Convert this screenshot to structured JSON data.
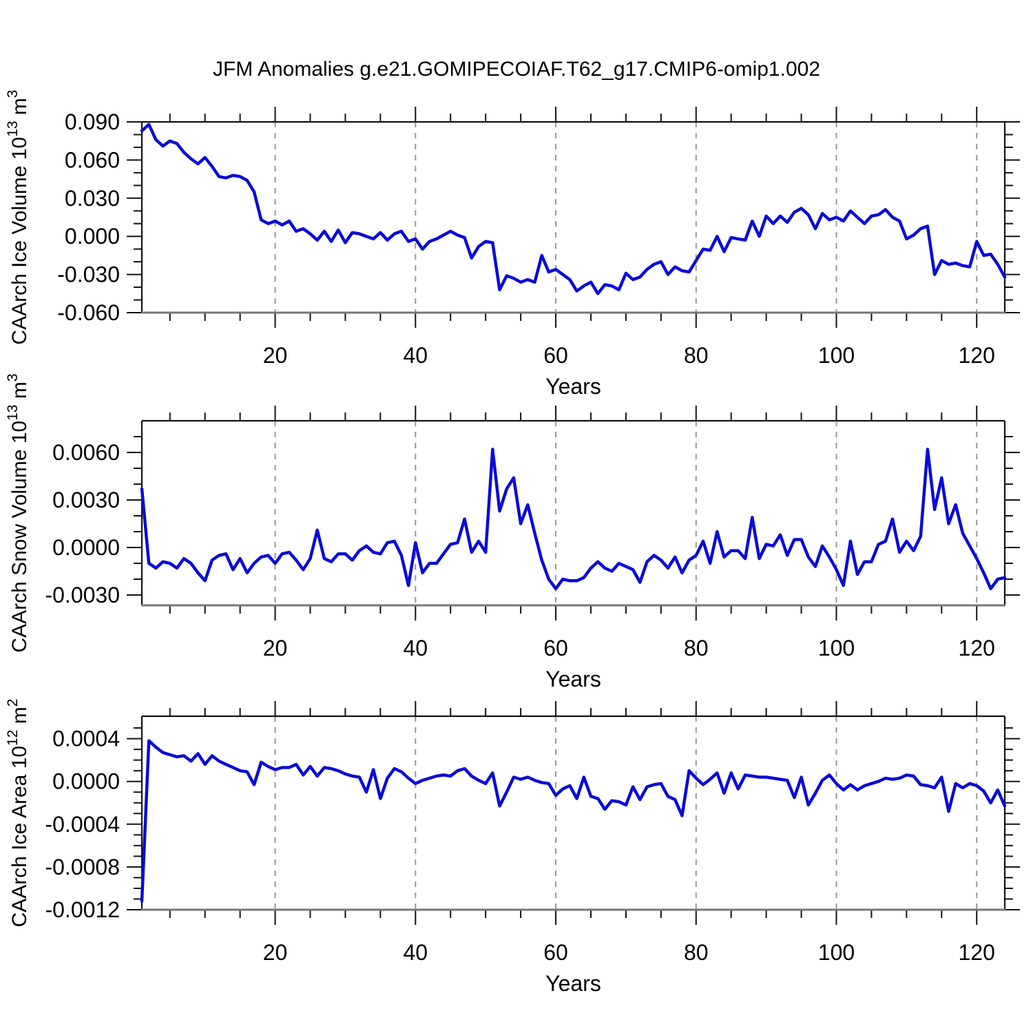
{
  "title": "JFM Anomalies g.e21.GOMIPECOIAF.T62_g17.CMIP6-omip1.002",
  "colors": {
    "line": "#0b0bd6",
    "frame": "#111111",
    "bottom_frame": "#777777",
    "grid": "#989898",
    "text": "#000000"
  },
  "chart_data": [
    {
      "type": "line",
      "ylabel": "CAArch Ice Volume 10^13 m^3",
      "xlabel": "Years",
      "x": {
        "start": 1,
        "end": 124,
        "step": 1
      },
      "xticks": [
        20,
        40,
        60,
        80,
        100,
        120
      ],
      "x_minor_step": 5,
      "ylim": [
        -0.06,
        0.09
      ],
      "yticks": [
        {
          "v": 0.09,
          "label": "0.090"
        },
        {
          "v": 0.06,
          "label": "0.060"
        },
        {
          "v": 0.03,
          "label": "0.030"
        },
        {
          "v": 0.0,
          "label": "0.000"
        },
        {
          "v": -0.03,
          "label": "-0.030"
        },
        {
          "v": -0.06,
          "label": "-0.060"
        }
      ],
      "y_minor_step": 0.01,
      "grid": true,
      "legend": "none",
      "values": [
        0.083,
        0.088,
        0.076,
        0.071,
        0.075,
        0.073,
        0.066,
        0.061,
        0.057,
        0.062,
        0.055,
        0.047,
        0.046,
        0.048,
        0.047,
        0.044,
        0.035,
        0.013,
        0.01,
        0.012,
        0.009,
        0.012,
        0.004,
        0.006,
        0.002,
        -0.003,
        0.004,
        -0.004,
        0.005,
        -0.005,
        0.003,
        0.002,
        0.0,
        -0.002,
        0.003,
        -0.003,
        0.002,
        0.004,
        -0.004,
        -0.002,
        -0.01,
        -0.004,
        -0.002,
        0.001,
        0.004,
        0.001,
        -0.001,
        -0.017,
        -0.008,
        -0.004,
        -0.005,
        -0.042,
        -0.031,
        -0.033,
        -0.036,
        -0.034,
        -0.036,
        -0.015,
        -0.028,
        -0.026,
        -0.03,
        -0.034,
        -0.043,
        -0.039,
        -0.036,
        -0.045,
        -0.038,
        -0.039,
        -0.042,
        -0.029,
        -0.034,
        -0.032,
        -0.026,
        -0.022,
        -0.02,
        -0.03,
        -0.024,
        -0.027,
        -0.028,
        -0.019,
        -0.01,
        -0.011,
        0.0,
        -0.012,
        -0.001,
        -0.002,
        -0.003,
        0.012,
        0.0,
        0.016,
        0.01,
        0.016,
        0.011,
        0.019,
        0.022,
        0.017,
        0.006,
        0.018,
        0.013,
        0.015,
        0.012,
        0.02,
        0.015,
        0.01,
        0.016,
        0.017,
        0.021,
        0.015,
        0.012,
        -0.002,
        0.001,
        0.006,
        0.008,
        -0.03,
        -0.019,
        -0.022,
        -0.021,
        -0.023,
        -0.024,
        -0.004,
        -0.015,
        -0.014,
        -0.022,
        -0.032
      ]
    },
    {
      "type": "line",
      "ylabel": "CAArch Snow Volume 10^13 m^3",
      "xlabel": "Years",
      "x": {
        "start": 1,
        "end": 124,
        "step": 1
      },
      "xticks": [
        20,
        40,
        60,
        80,
        100,
        120
      ],
      "x_minor_step": 5,
      "ylim": [
        -0.003652,
        0.008
      ],
      "yticks": [
        {
          "v": 0.006,
          "label": "0.0060"
        },
        {
          "v": 0.003,
          "label": "0.0030"
        },
        {
          "v": 0.0,
          "label": "0.0000"
        },
        {
          "v": -0.003,
          "label": "-0.0030"
        }
      ],
      "y_minor_step": 0.001,
      "grid": true,
      "legend": "none",
      "values": [
        0.0037,
        -0.001,
        -0.0013,
        -0.0009,
        -0.001,
        -0.0013,
        -0.0007,
        -0.001,
        -0.0016,
        -0.0021,
        -0.0008,
        -0.0005,
        -0.0004,
        -0.0014,
        -0.0007,
        -0.0016,
        -0.001,
        -0.0006,
        -0.0005,
        -0.001,
        -0.0004,
        -0.0003,
        -0.0008,
        -0.0014,
        -0.0007,
        0.0011,
        -0.0007,
        -0.0009,
        -0.0004,
        -0.0004,
        -0.0008,
        -0.0002,
        0.0001,
        -0.0003,
        -0.0004,
        0.0003,
        0.0004,
        -0.0005,
        -0.0024,
        0.0003,
        -0.0016,
        -0.001,
        -0.001,
        -0.0004,
        0.0002,
        0.0003,
        0.0018,
        -0.0003,
        0.0004,
        -0.0003,
        0.0062,
        0.0023,
        0.0037,
        0.0044,
        0.0015,
        0.0027,
        0.0009,
        -0.0008,
        -0.002,
        -0.0026,
        -0.002,
        -0.0021,
        -0.0021,
        -0.0019,
        -0.0013,
        -0.0009,
        -0.0013,
        -0.0015,
        -0.001,
        -0.0012,
        -0.0014,
        -0.0022,
        -0.0009,
        -0.0005,
        -0.0008,
        -0.0013,
        -0.0006,
        -0.0016,
        -0.0008,
        -0.0005,
        0.0004,
        -0.001,
        0.001,
        -0.0006,
        -0.0002,
        -0.0002,
        -0.0007,
        0.0019,
        -0.0007,
        0.0002,
        0.0001,
        0.0008,
        -0.0005,
        0.0005,
        0.0005,
        -0.0006,
        -0.0012,
        0.0001,
        -0.0006,
        -0.0014,
        -0.0024,
        0.0004,
        -0.0017,
        -0.0009,
        -0.0009,
        0.0002,
        0.0004,
        0.0018,
        -0.0003,
        0.0004,
        -0.0002,
        0.0007,
        0.0062,
        0.0024,
        0.0044,
        0.0015,
        0.0027,
        0.0009,
        0.0001,
        -0.0007,
        -0.0016,
        -0.0026,
        -0.002,
        -0.0019
      ]
    },
    {
      "type": "line",
      "ylabel": "CAArch Ice Area 10^12 m^2",
      "xlabel": "Years",
      "x": {
        "start": 1,
        "end": 124,
        "step": 1
      },
      "xticks": [
        20,
        40,
        60,
        80,
        100,
        120
      ],
      "x_minor_step": 5,
      "ylim": [
        -0.0012,
        0.00061
      ],
      "yticks": [
        {
          "v": 0.0004,
          "label": "0.0004"
        },
        {
          "v": 0.0,
          "label": "0.0000"
        },
        {
          "v": -0.0004,
          "label": "-0.0004"
        },
        {
          "v": -0.0008,
          "label": "-0.0008"
        },
        {
          "v": -0.0012,
          "label": "-0.0012"
        }
      ],
      "y_minor_step": 0.0001,
      "grid": true,
      "legend": "none",
      "values": [
        -0.00112,
        0.00038,
        0.00032,
        0.00027,
        0.00025,
        0.00023,
        0.00024,
        0.00019,
        0.00026,
        0.00016,
        0.00024,
        0.00019,
        0.00016,
        0.00013,
        0.0001,
        9e-05,
        -3e-05,
        0.00018,
        0.00014,
        0.00011,
        0.00013,
        0.00013,
        0.00016,
        6e-05,
        0.00014,
        5e-05,
        0.00013,
        0.00012,
        0.0001,
        7e-05,
        5e-05,
        4e-05,
        -0.0001,
        0.00011,
        -0.00016,
        3e-05,
        0.00012,
        9e-05,
        3e-05,
        -2e-05,
        1e-05,
        3e-05,
        5e-05,
        6e-05,
        5e-05,
        0.0001,
        0.00012,
        5e-05,
        1e-05,
        -2e-05,
        8e-05,
        -0.00023,
        -0.0001,
        4e-05,
        2e-05,
        4e-05,
        1e-05,
        -1e-05,
        -2e-05,
        -0.00013,
        -7e-05,
        -4e-05,
        -0.00016,
        4e-05,
        -0.00014,
        -0.00016,
        -0.00026,
        -0.00018,
        -0.00019,
        -0.00022,
        -5e-05,
        -0.00017,
        -5e-05,
        -3e-05,
        -2e-05,
        -0.00014,
        -0.00017,
        -0.00032,
        0.0001,
        3e-05,
        -3e-05,
        2e-05,
        8e-05,
        -0.00011,
        8e-05,
        -7e-05,
        6e-05,
        5e-05,
        4e-05,
        4e-05,
        3e-05,
        2e-05,
        1e-05,
        -0.00015,
        4e-05,
        -0.00022,
        -0.00011,
        1e-05,
        6e-05,
        -2e-05,
        -8e-05,
        -3e-05,
        -8e-05,
        -4e-05,
        -2e-05,
        0.0,
        3e-05,
        2e-05,
        3e-05,
        6e-05,
        5e-05,
        -3e-05,
        -4e-05,
        -6e-05,
        4e-05,
        -0.00028,
        -2e-05,
        -6e-05,
        -2e-05,
        -4e-05,
        -9e-05,
        -0.0002,
        -8e-05,
        -0.00023
      ]
    }
  ]
}
